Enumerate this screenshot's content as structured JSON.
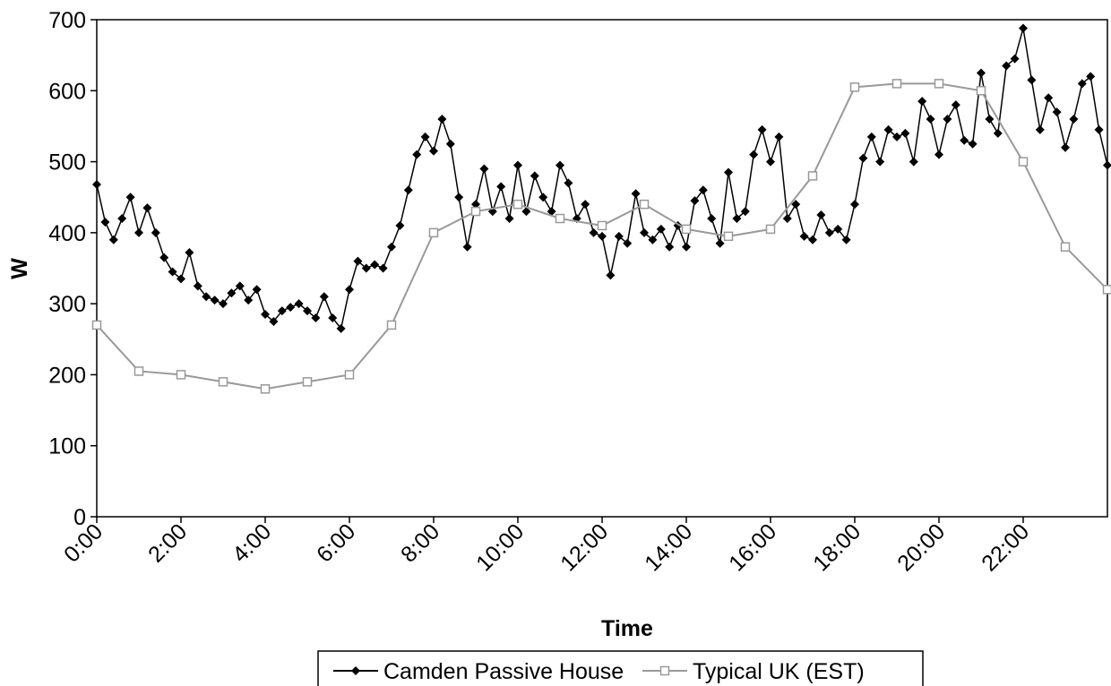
{
  "chart_data": {
    "type": "line",
    "xlabel": "Time",
    "ylabel": "W",
    "xlim": [
      0,
      24
    ],
    "ylim": [
      0,
      700
    ],
    "xticks": [
      {
        "value": 0,
        "label": "0:00"
      },
      {
        "value": 2,
        "label": "2:00"
      },
      {
        "value": 4,
        "label": "4:00"
      },
      {
        "value": 6,
        "label": "6:00"
      },
      {
        "value": 8,
        "label": "8:00"
      },
      {
        "value": 10,
        "label": "10:00"
      },
      {
        "value": 12,
        "label": "12:00"
      },
      {
        "value": 14,
        "label": "14:00"
      },
      {
        "value": 16,
        "label": "16:00"
      },
      {
        "value": 18,
        "label": "18:00"
      },
      {
        "value": 20,
        "label": "20:00"
      },
      {
        "value": 22,
        "label": "22:00"
      }
    ],
    "yticks": [
      0,
      100,
      200,
      300,
      400,
      500,
      600,
      700
    ],
    "legend": "bottom",
    "series": [
      {
        "name": "Camden Passive House",
        "color": "#000000",
        "marker": "diamond",
        "x": [
          0,
          0.2,
          0.4,
          0.6,
          0.8,
          1,
          1.2,
          1.4,
          1.6,
          1.8,
          2,
          2.2,
          2.4,
          2.6,
          2.8,
          3,
          3.2,
          3.4,
          3.6,
          3.8,
          4,
          4.2,
          4.4,
          4.6,
          4.8,
          5,
          5.2,
          5.4,
          5.6,
          5.8,
          6,
          6.2,
          6.4,
          6.6,
          6.8,
          7,
          7.2,
          7.4,
          7.6,
          7.8,
          8,
          8.2,
          8.4,
          8.6,
          8.8,
          9,
          9.2,
          9.4,
          9.6,
          9.8,
          10,
          10.2,
          10.4,
          10.6,
          10.8,
          11,
          11.2,
          11.4,
          11.6,
          11.8,
          12,
          12.2,
          12.4,
          12.6,
          12.8,
          13,
          13.2,
          13.4,
          13.6,
          13.8,
          14,
          14.2,
          14.4,
          14.6,
          14.8,
          15,
          15.2,
          15.4,
          15.6,
          15.8,
          16,
          16.2,
          16.4,
          16.6,
          16.8,
          17,
          17.2,
          17.4,
          17.6,
          17.8,
          18,
          18.2,
          18.4,
          18.6,
          18.8,
          19,
          19.2,
          19.4,
          19.6,
          19.8,
          20,
          20.2,
          20.4,
          20.6,
          20.8,
          21,
          21.2,
          21.4,
          21.6,
          21.8,
          22,
          22.2,
          22.4,
          22.6,
          22.8,
          23,
          23.2,
          23.4,
          23.6,
          23.8,
          24
        ],
        "values": [
          468,
          415,
          390,
          420,
          450,
          400,
          435,
          400,
          365,
          345,
          335,
          372,
          325,
          310,
          305,
          300,
          315,
          325,
          305,
          320,
          285,
          275,
          290,
          295,
          300,
          290,
          280,
          310,
          280,
          265,
          320,
          360,
          350,
          355,
          350,
          380,
          410,
          460,
          510,
          535,
          515,
          560,
          525,
          450,
          380,
          440,
          490,
          430,
          465,
          420,
          495,
          430,
          480,
          450,
          430,
          495,
          470,
          420,
          440,
          400,
          395,
          340,
          395,
          385,
          455,
          400,
          390,
          405,
          380,
          410,
          380,
          445,
          460,
          420,
          385,
          485,
          420,
          430,
          510,
          545,
          500,
          535,
          420,
          440,
          395,
          390,
          425,
          400,
          405,
          390,
          440,
          505,
          535,
          500,
          545,
          535,
          540,
          500,
          585,
          560,
          510,
          560,
          580,
          530,
          525,
          625,
          560,
          540,
          635,
          645,
          688,
          615,
          545,
          590,
          570,
          520,
          560,
          610,
          620,
          545,
          495
        ]
      },
      {
        "name": "Typical UK (EST)",
        "color": "#999999",
        "marker": "square",
        "x": [
          0,
          1,
          2,
          3,
          4,
          5,
          6,
          7,
          8,
          9,
          10,
          11,
          12,
          13,
          14,
          15,
          16,
          17,
          18,
          19,
          20,
          21,
          22,
          23,
          24
        ],
        "values": [
          270,
          205,
          200,
          190,
          180,
          190,
          200,
          270,
          400,
          430,
          440,
          420,
          410,
          440,
          405,
          395,
          405,
          480,
          605,
          610,
          610,
          600,
          500,
          380,
          320
        ]
      }
    ]
  }
}
